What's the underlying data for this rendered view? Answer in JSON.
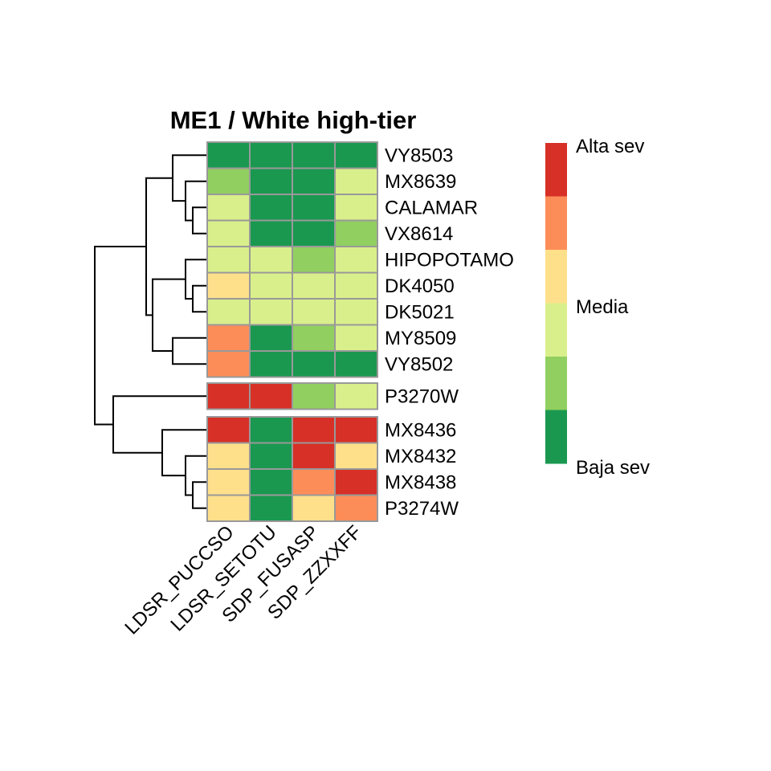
{
  "chart_data": {
    "type": "heatmap",
    "title": "ME1 / White high-tier",
    "columns": [
      "LDSR_PUCCSO",
      "LDSR_SETOTU",
      "SDP_FUSASP",
      "SDP_ZZXXFF"
    ],
    "rows": [
      "VY8503",
      "MX8639",
      "CALAMAR",
      "VX8614",
      "HIPOPOTAMO",
      "DK4050",
      "DK5021",
      "MY8509",
      "VY8502",
      "P3270W",
      "MX8436",
      "MX8432",
      "MX8438",
      "P3274W"
    ],
    "row_groups": [
      9,
      1,
      4
    ],
    "values": [
      [
        1,
        1,
        1,
        1
      ],
      [
        2,
        1,
        1,
        3
      ],
      [
        3,
        1,
        1,
        3
      ],
      [
        3,
        1,
        1,
        2
      ],
      [
        3,
        3,
        2,
        3
      ],
      [
        4,
        3,
        3,
        3
      ],
      [
        3,
        3,
        3,
        3
      ],
      [
        5,
        1,
        2,
        3
      ],
      [
        5,
        1,
        1,
        1
      ],
      [
        6,
        6,
        2,
        3
      ],
      [
        6,
        1,
        6,
        6
      ],
      [
        4,
        1,
        6,
        4
      ],
      [
        4,
        1,
        5,
        6
      ],
      [
        4,
        1,
        4,
        5
      ]
    ],
    "color_scale": [
      {
        "level": 1,
        "color": "#1a9850"
      },
      {
        "level": 2,
        "color": "#91cf60"
      },
      {
        "level": 3,
        "color": "#d9ef8b"
      },
      {
        "level": 4,
        "color": "#fee08b"
      },
      {
        "level": 5,
        "color": "#fc8d59"
      },
      {
        "level": 6,
        "color": "#d73027"
      }
    ],
    "legend": {
      "labels": [
        "Alta sev",
        "Media",
        "Baja sev"
      ],
      "placement": "right"
    },
    "dendrogram": "rows",
    "cell_border_color": "#999999"
  }
}
